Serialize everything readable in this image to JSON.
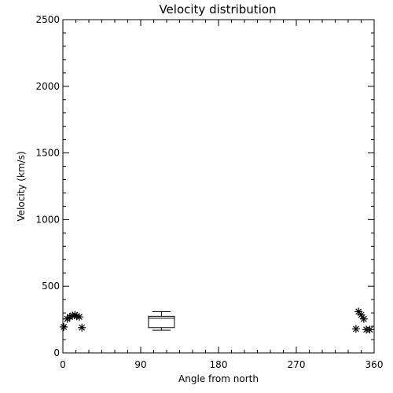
{
  "chart_data": {
    "type": "scatter",
    "title": "Velocity distribution",
    "xlabel": "Angle from north",
    "ylabel": "Velocity (km/s)",
    "xlim": [
      0,
      360
    ],
    "ylim": [
      0,
      2500
    ],
    "x_ticks": [
      "0",
      "90",
      "180",
      "270",
      "360"
    ],
    "y_ticks": [
      "0",
      "500",
      "1000",
      "1500",
      "2000",
      "2500"
    ],
    "grid": false,
    "points": [
      {
        "x": 1,
        "y": 195
      },
      {
        "x": 5,
        "y": 255
      },
      {
        "x": 8,
        "y": 270
      },
      {
        "x": 11,
        "y": 280
      },
      {
        "x": 14,
        "y": 285
      },
      {
        "x": 16,
        "y": 275
      },
      {
        "x": 19,
        "y": 270
      },
      {
        "x": 22,
        "y": 190
      },
      {
        "x": 339,
        "y": 180
      },
      {
        "x": 342,
        "y": 310
      },
      {
        "x": 345,
        "y": 285
      },
      {
        "x": 348,
        "y": 255
      },
      {
        "x": 351,
        "y": 175
      },
      {
        "x": 355,
        "y": 175
      }
    ],
    "boxplot": {
      "x_center": 114,
      "x_halfwidth": 15,
      "min": 170,
      "q1": 190,
      "median": 260,
      "q3": 275,
      "max": 310
    },
    "colors": {
      "foreground": "#000000",
      "background": "#ffffff"
    }
  }
}
